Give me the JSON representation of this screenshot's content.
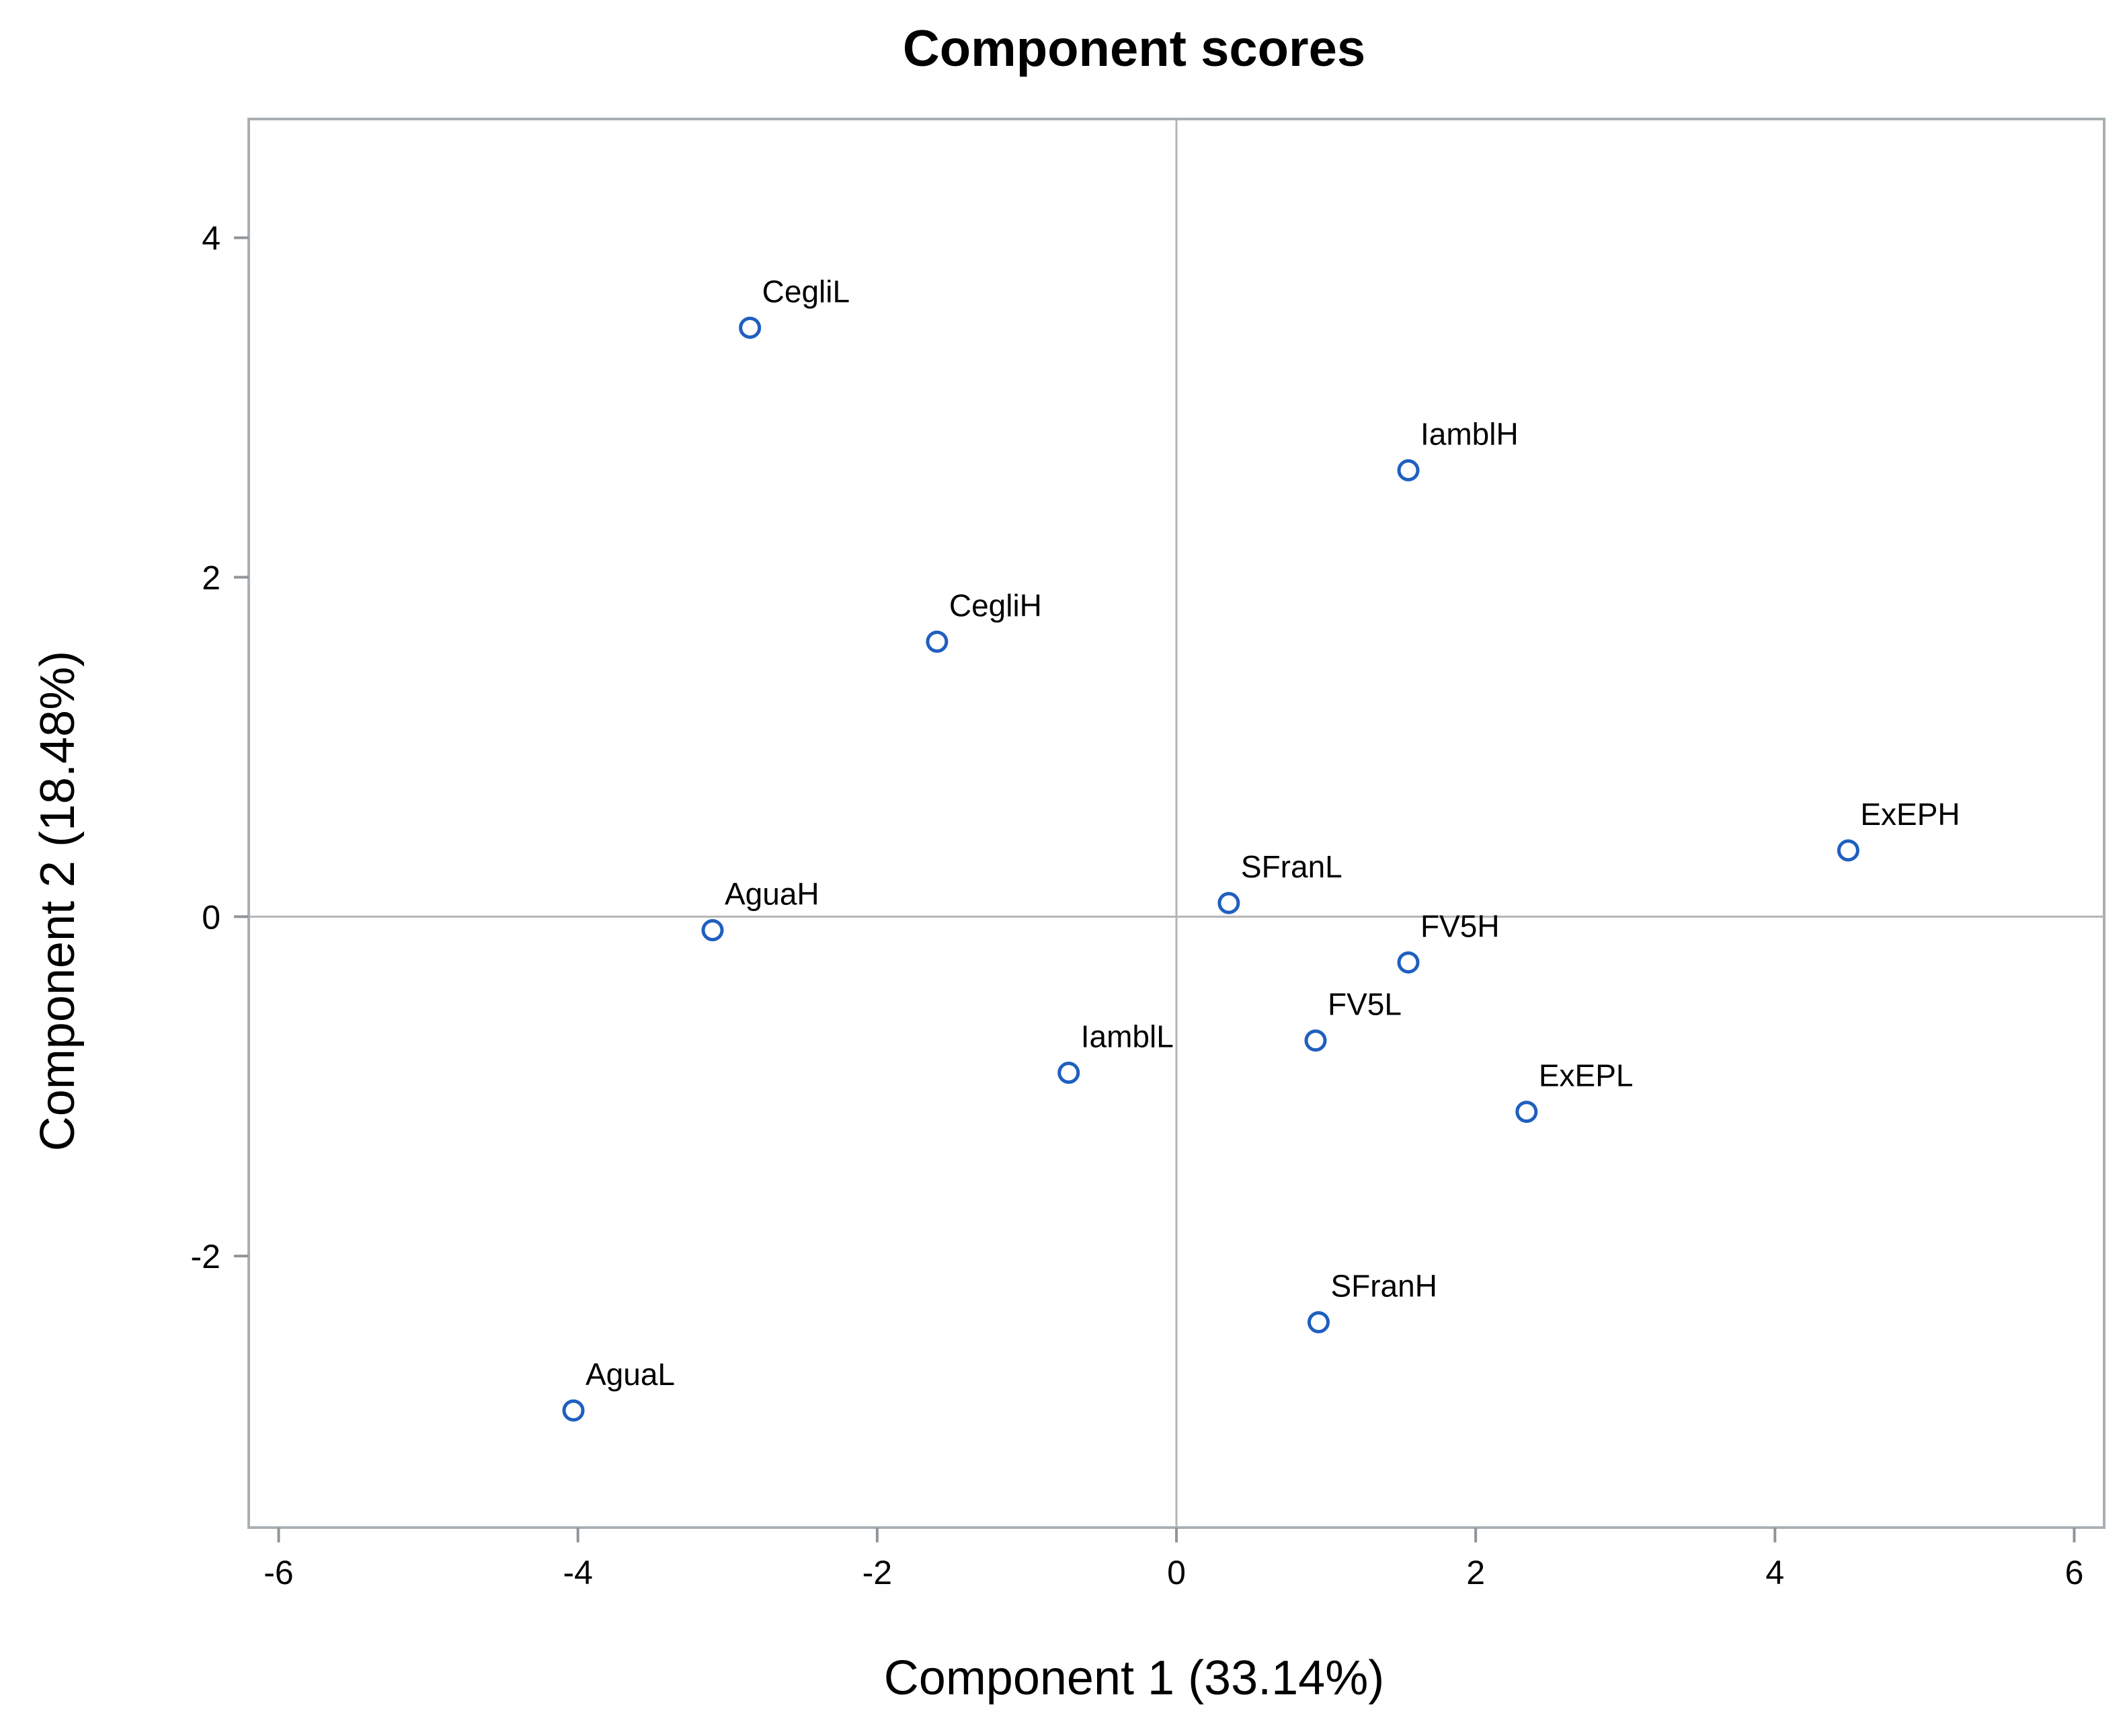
{
  "chart_data": {
    "type": "scatter",
    "title": "Component scores",
    "xlabel": "Component 1 (33.14%)",
    "ylabel": "Component 2 (18.48%)",
    "xlim": [
      -6.2,
      6.2
    ],
    "ylim": [
      -3.6,
      4.7
    ],
    "xticks": [
      -6,
      -4,
      -2,
      0,
      2,
      4,
      6
    ],
    "yticks": [
      -2,
      0,
      2,
      4
    ],
    "x_tick_labels": [
      "-6",
      "-4",
      "-2",
      "0",
      "2",
      "4",
      "6"
    ],
    "y_tick_labels": [
      "-2",
      "0",
      "2",
      "4"
    ],
    "reference_lines": {
      "x": 0,
      "y": 0
    },
    "grid": false,
    "legend": "none",
    "marker_color": "#1f5fbf",
    "points": [
      {
        "label": "CegliL",
        "x": -2.85,
        "y": 3.47
      },
      {
        "label": "IamblH",
        "x": 1.55,
        "y": 2.63
      },
      {
        "label": "CegliH",
        "x": -1.6,
        "y": 1.62
      },
      {
        "label": "ExEPH",
        "x": 4.49,
        "y": 0.39
      },
      {
        "label": "SFranL",
        "x": 0.35,
        "y": 0.08
      },
      {
        "label": "AguaH",
        "x": -3.1,
        "y": -0.08
      },
      {
        "label": "FV5H",
        "x": 1.55,
        "y": -0.27
      },
      {
        "label": "FV5L",
        "x": 0.93,
        "y": -0.73
      },
      {
        "label": "IamblL",
        "x": -0.72,
        "y": -0.92
      },
      {
        "label": "ExEPL",
        "x": 2.34,
        "y": -1.15
      },
      {
        "label": "SFranH",
        "x": 0.95,
        "y": -2.39
      },
      {
        "label": "AguaL",
        "x": -4.03,
        "y": -2.91
      }
    ]
  }
}
